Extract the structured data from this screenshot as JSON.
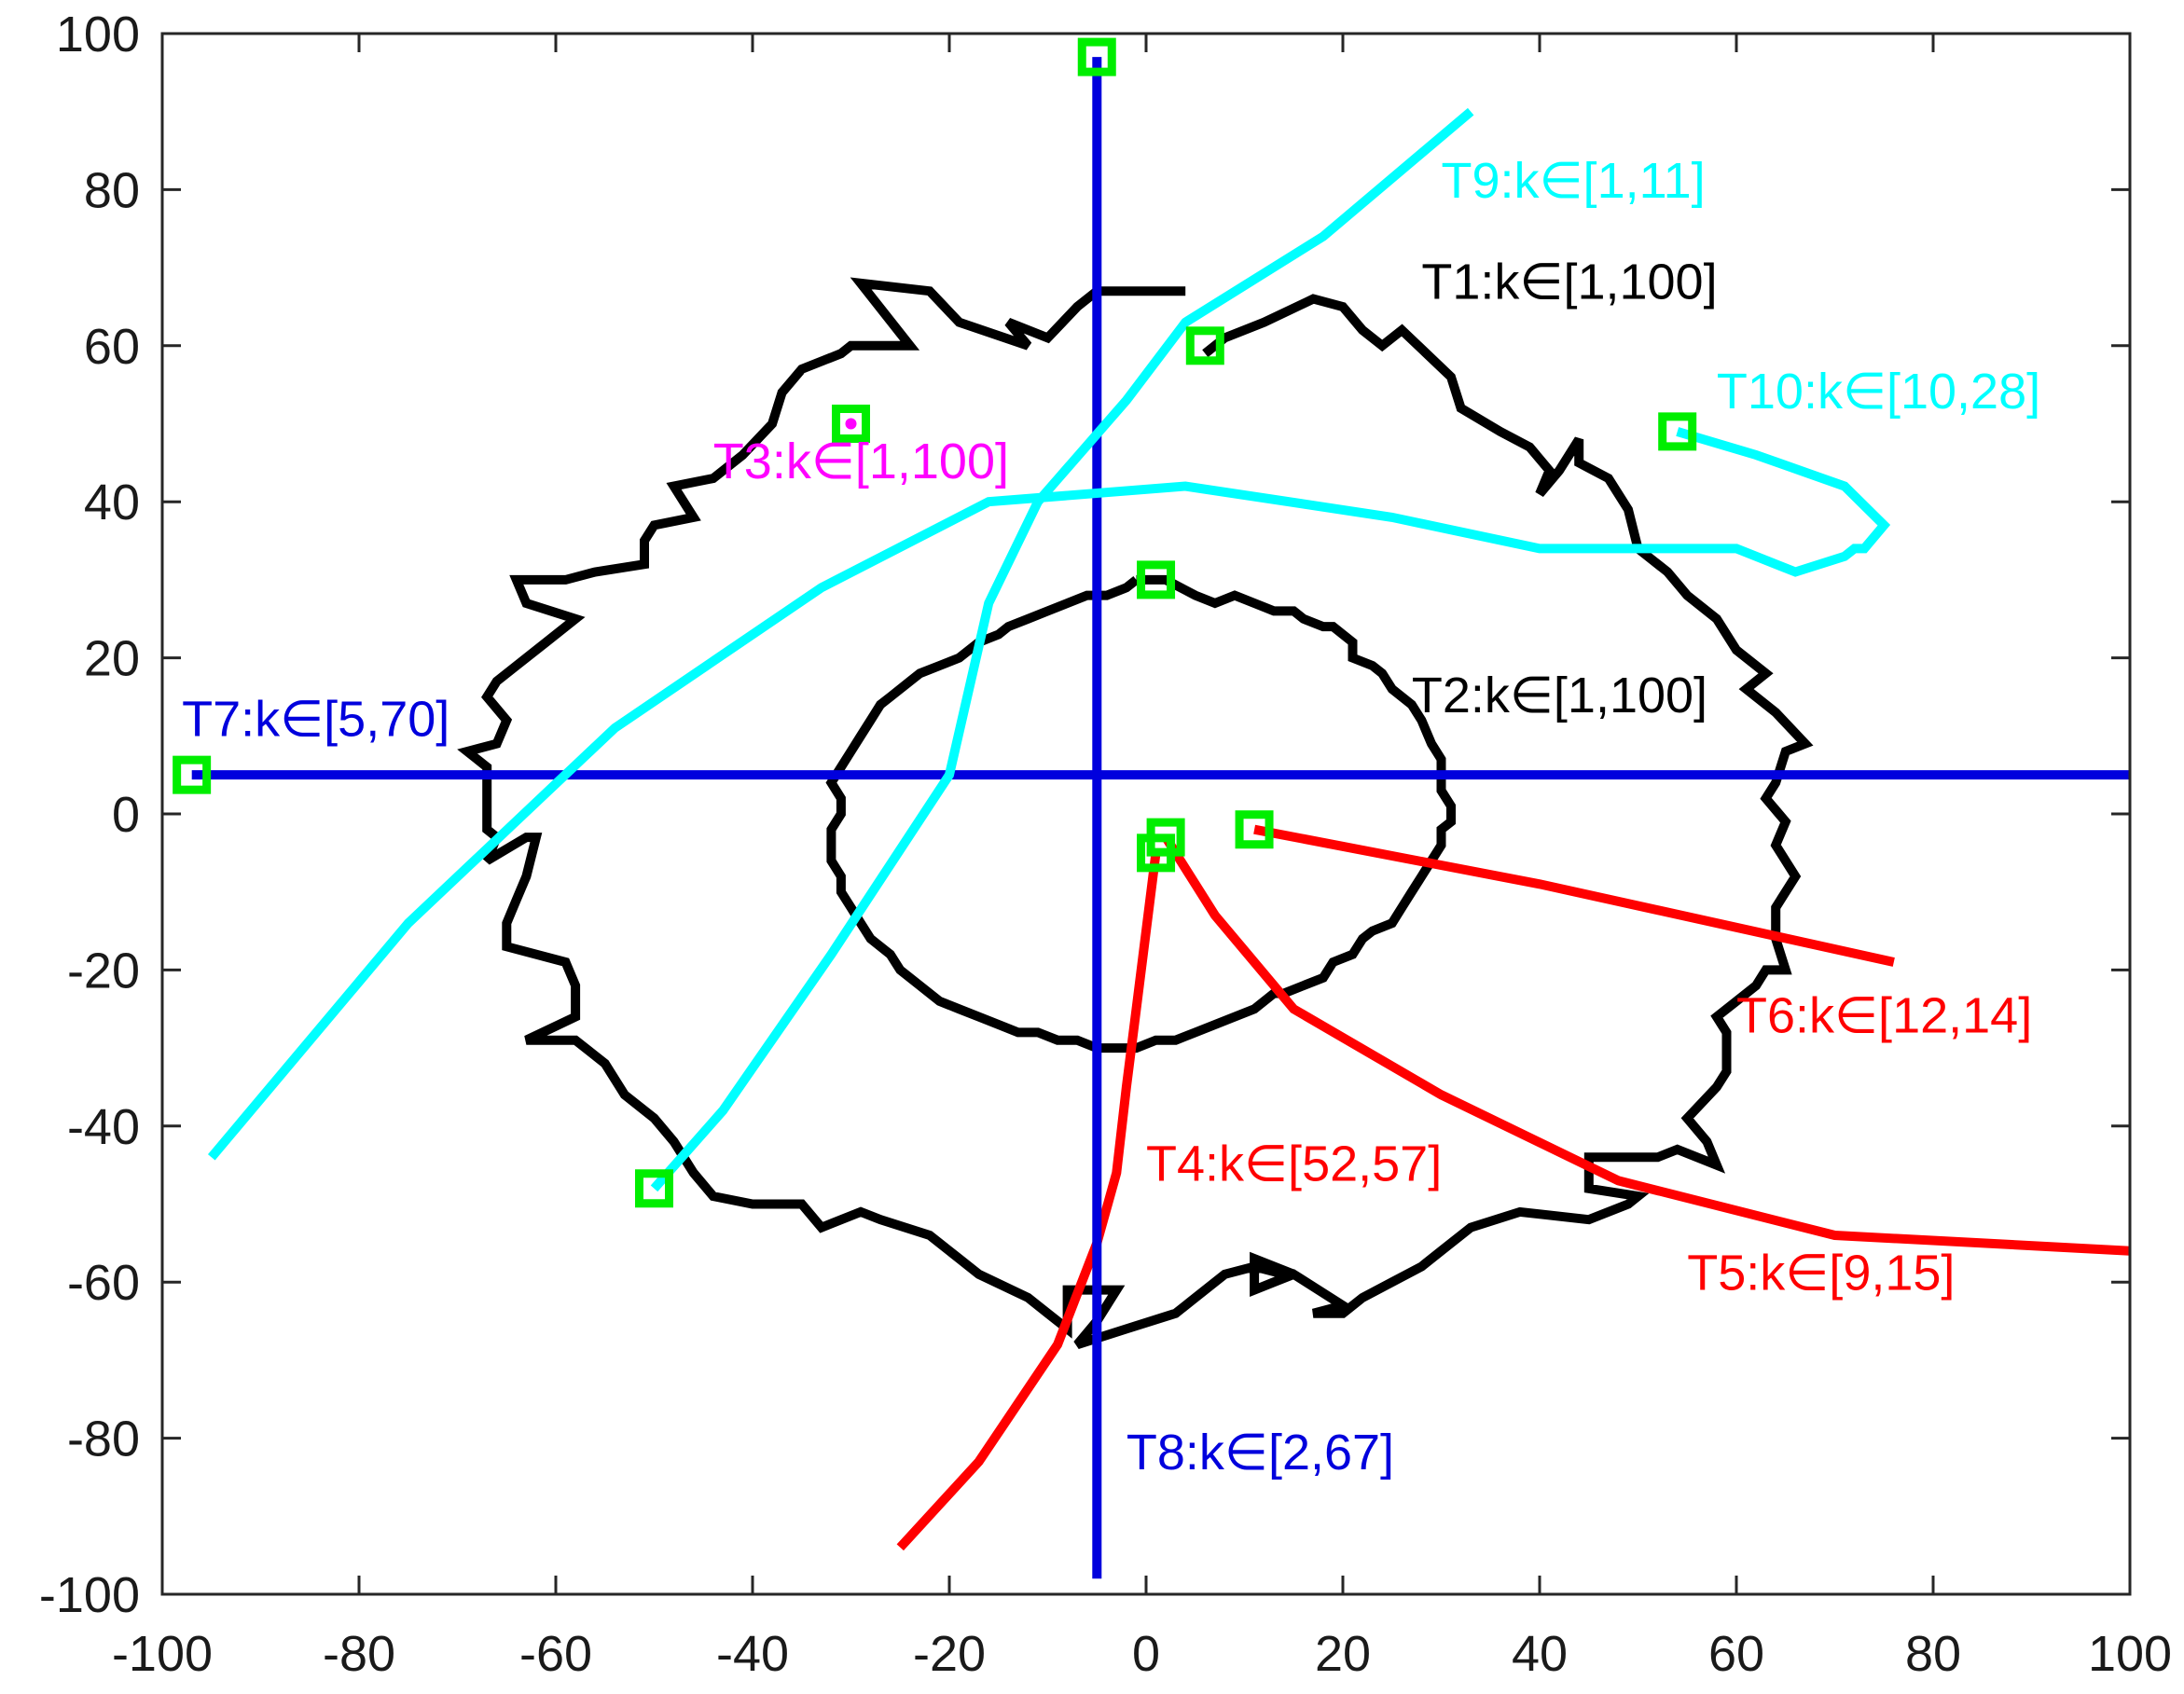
{
  "chart_data": {
    "type": "line",
    "title": "",
    "xlabel": "",
    "ylabel": "",
    "xlim": [
      -100,
      100
    ],
    "ylim": [
      -100,
      100
    ],
    "xticks": [
      -100,
      -80,
      -60,
      -40,
      -20,
      0,
      20,
      40,
      60,
      80,
      100
    ],
    "yticks": [
      -100,
      -80,
      -60,
      -40,
      -20,
      0,
      20,
      40,
      60,
      80,
      100
    ],
    "grid": false,
    "legend": "none",
    "series": [
      {
        "id": "T1",
        "label": "T1:k∈[1,100]",
        "color": "#000000",
        "points": [
          [
            4,
            67
          ],
          [
            -5,
            67
          ],
          [
            -7,
            65
          ],
          [
            -10,
            61
          ],
          [
            -14,
            63
          ],
          [
            -12,
            60
          ],
          [
            -19,
            63
          ],
          [
            -22,
            67
          ],
          [
            -29,
            68
          ],
          [
            -24,
            60
          ],
          [
            -30,
            60
          ],
          [
            -31,
            59
          ],
          [
            -35,
            57
          ],
          [
            -37,
            54
          ],
          [
            -38,
            50
          ],
          [
            -41,
            46
          ],
          [
            -44,
            43
          ],
          [
            -48,
            42
          ],
          [
            -46,
            38
          ],
          [
            -50,
            37
          ],
          [
            -51,
            35
          ],
          [
            -51,
            32
          ],
          [
            -56,
            31
          ],
          [
            -59,
            30
          ],
          [
            -64,
            30
          ],
          [
            -63,
            27
          ],
          [
            -58,
            25
          ],
          [
            -61,
            22
          ],
          [
            -64,
            19
          ],
          [
            -66,
            17
          ],
          [
            -67,
            15
          ],
          [
            -65,
            12
          ],
          [
            -66,
            9
          ],
          [
            -69,
            8
          ],
          [
            -67,
            6
          ],
          [
            -67,
            2
          ],
          [
            -67,
            -2
          ],
          [
            -66,
            -3
          ],
          [
            -67,
            -6
          ],
          [
            -63,
            -3
          ],
          [
            -62,
            -3
          ],
          [
            -63,
            -8
          ],
          [
            -64,
            -11
          ],
          [
            -65,
            -14
          ],
          [
            -65,
            -17
          ],
          [
            -59,
            -19
          ],
          [
            -58,
            -22
          ],
          [
            -58,
            -26
          ],
          [
            -63,
            -29
          ],
          [
            -58,
            -29
          ],
          [
            -55,
            -32
          ],
          [
            -53,
            -36
          ],
          [
            -50,
            -39
          ],
          [
            -48,
            -42
          ],
          [
            -46,
            -46
          ],
          [
            -44,
            -49
          ],
          [
            -40,
            -50
          ],
          [
            -35,
            -50
          ],
          [
            -33,
            -53
          ],
          [
            -29,
            -51
          ],
          [
            -27,
            -52
          ],
          [
            -22,
            -54
          ],
          [
            -19,
            -57
          ],
          [
            -17,
            -59
          ],
          [
            -12,
            -62
          ],
          [
            -10,
            -64
          ],
          [
            -8,
            -66
          ],
          [
            -8,
            -61
          ],
          [
            -3,
            -61
          ],
          [
            -5,
            -65
          ],
          [
            -7,
            -68
          ],
          [
            -2,
            -66
          ],
          [
            3,
            -64
          ],
          [
            8,
            -59
          ],
          [
            11,
            -58
          ],
          [
            14,
            -59
          ],
          [
            15,
            -59
          ],
          [
            11,
            -57
          ],
          [
            11,
            -61
          ],
          [
            13,
            -60
          ],
          [
            15,
            -59
          ],
          [
            20,
            -63
          ],
          [
            17,
            -64
          ],
          [
            20,
            -64
          ],
          [
            22,
            -62
          ],
          [
            25,
            -60
          ],
          [
            28,
            -58
          ],
          [
            30,
            -56
          ],
          [
            33,
            -53
          ],
          [
            38,
            -51
          ],
          [
            45,
            -52
          ],
          [
            49,
            -50
          ],
          [
            50,
            -49
          ],
          [
            45,
            -48
          ],
          [
            45,
            -44
          ],
          [
            52,
            -44
          ],
          [
            54,
            -43
          ],
          [
            58,
            -45
          ],
          [
            57,
            -42
          ],
          [
            55,
            -39
          ],
          [
            58,
            -35
          ],
          [
            59,
            -33
          ],
          [
            59,
            -28
          ],
          [
            58,
            -26
          ],
          [
            60,
            -24
          ],
          [
            62,
            -22
          ],
          [
            63,
            -20
          ],
          [
            65,
            -20
          ],
          [
            64,
            -16
          ],
          [
            64,
            -12
          ],
          [
            66,
            -8
          ],
          [
            64,
            -4
          ],
          [
            65,
            -1
          ],
          [
            63,
            2
          ],
          [
            64,
            4
          ],
          [
            65,
            8
          ],
          [
            67,
            9
          ],
          [
            64,
            13
          ],
          [
            61,
            16
          ],
          [
            63,
            18
          ],
          [
            60,
            21
          ],
          [
            58,
            25
          ],
          [
            55,
            28
          ],
          [
            53,
            31
          ],
          [
            50,
            34
          ],
          [
            49,
            39
          ],
          [
            47,
            43
          ],
          [
            44,
            45
          ],
          [
            44,
            48
          ],
          [
            42,
            44
          ],
          [
            40,
            41
          ],
          [
            41,
            44
          ],
          [
            39,
            47
          ],
          [
            36,
            49
          ],
          [
            32,
            52
          ],
          [
            31,
            56
          ],
          [
            26,
            62
          ],
          [
            24,
            60
          ],
          [
            22,
            62
          ],
          [
            20,
            65
          ],
          [
            17,
            66
          ],
          [
            12,
            63
          ],
          [
            8,
            61
          ],
          [
            6,
            59
          ]
        ]
      },
      {
        "id": "T2",
        "label": "T2:k∈[1,100]",
        "color": "#000000",
        "points": [
          [
            -1,
            30
          ],
          [
            1,
            30
          ],
          [
            2,
            30
          ],
          [
            5,
            28
          ],
          [
            7,
            27
          ],
          [
            9,
            28
          ],
          [
            11,
            27
          ],
          [
            13,
            26
          ],
          [
            15,
            26
          ],
          [
            16,
            25
          ],
          [
            18,
            24
          ],
          [
            19,
            24
          ],
          [
            21,
            22
          ],
          [
            21,
            20
          ],
          [
            23,
            19
          ],
          [
            24,
            18
          ],
          [
            25,
            16
          ],
          [
            27,
            14
          ],
          [
            28,
            12
          ],
          [
            29,
            9
          ],
          [
            30,
            7
          ],
          [
            30,
            5
          ],
          [
            30,
            3
          ],
          [
            31,
            1
          ],
          [
            31,
            -1
          ],
          [
            30,
            -2
          ],
          [
            30,
            -4
          ],
          [
            29,
            -6
          ],
          [
            28,
            -8
          ],
          [
            27,
            -10
          ],
          [
            26,
            -12
          ],
          [
            25,
            -14
          ],
          [
            23,
            -15
          ],
          [
            22,
            -16
          ],
          [
            21,
            -18
          ],
          [
            19,
            -19
          ],
          [
            18,
            -21
          ],
          [
            16,
            -22
          ],
          [
            14,
            -23
          ],
          [
            13,
            -23
          ],
          [
            11,
            -25
          ],
          [
            9,
            -26
          ],
          [
            7,
            -27
          ],
          [
            5,
            -28
          ],
          [
            3,
            -29
          ],
          [
            1,
            -29
          ],
          [
            -1,
            -30
          ],
          [
            -3,
            -30
          ],
          [
            -5,
            -30
          ],
          [
            -7,
            -29
          ],
          [
            -9,
            -29
          ],
          [
            -11,
            -28
          ],
          [
            -13,
            -28
          ],
          [
            -15,
            -27
          ],
          [
            -17,
            -26
          ],
          [
            -19,
            -25
          ],
          [
            -21,
            -24
          ],
          [
            -23,
            -22
          ],
          [
            -25,
            -20
          ],
          [
            -26,
            -18
          ],
          [
            -28,
            -16
          ],
          [
            -29,
            -14
          ],
          [
            -30,
            -12
          ],
          [
            -31,
            -10
          ],
          [
            -31,
            -8
          ],
          [
            -32,
            -6
          ],
          [
            -32,
            -4
          ],
          [
            -32,
            -2
          ],
          [
            -31,
            0
          ],
          [
            -31,
            2
          ],
          [
            -32,
            4
          ],
          [
            -31,
            6
          ],
          [
            -30,
            8
          ],
          [
            -29,
            10
          ],
          [
            -28,
            12
          ],
          [
            -27,
            14
          ],
          [
            -26,
            15
          ],
          [
            -24,
            17
          ],
          [
            -23,
            18
          ],
          [
            -21,
            19
          ],
          [
            -19,
            20
          ],
          [
            -17,
            22
          ],
          [
            -15,
            23
          ],
          [
            -14,
            24
          ],
          [
            -12,
            25
          ],
          [
            -10,
            26
          ],
          [
            -8,
            27
          ],
          [
            -6,
            28
          ],
          [
            -4,
            28
          ],
          [
            -2,
            29
          ],
          [
            -1,
            30
          ]
        ]
      },
      {
        "id": "T3",
        "label": "T3:k∈[1,100]",
        "color": "#ff00ff",
        "points": [
          [
            -30,
            50
          ]
        ]
      },
      {
        "id": "T4",
        "label": "T4:k∈[52,57]",
        "color": "#ff0000",
        "points": [
          [
            1,
            -5
          ],
          [
            0,
            -15
          ],
          [
            -1,
            -25
          ],
          [
            -2,
            -35
          ],
          [
            -3,
            -46
          ],
          [
            -5,
            -55
          ],
          [
            -9,
            -68
          ],
          [
            -17,
            -83
          ],
          [
            -25,
            -94
          ]
        ]
      },
      {
        "id": "T5",
        "label": "T5:k∈[9,15]",
        "color": "#ff0000",
        "points": [
          [
            2,
            -3
          ],
          [
            7,
            -13
          ],
          [
            15,
            -25
          ],
          [
            30,
            -36
          ],
          [
            48,
            -47
          ],
          [
            70,
            -54
          ],
          [
            100,
            -56
          ]
        ]
      },
      {
        "id": "T6",
        "label": "T6:k∈[12,14]",
        "color": "#ff0000",
        "points": [
          [
            11,
            -2
          ],
          [
            40,
            -9
          ],
          [
            76,
            -19
          ]
        ]
      },
      {
        "id": "T7",
        "label": "T7:k∈[5,70]",
        "color": "#0000dd",
        "points": [
          [
            -97,
            5
          ],
          [
            100,
            5
          ]
        ]
      },
      {
        "id": "T8",
        "label": "T8:k∈[2,67]",
        "color": "#0000dd",
        "points": [
          [
            -5,
            97
          ],
          [
            -5,
            -98
          ]
        ]
      },
      {
        "id": "T9",
        "label": "T9:k∈[1,11]",
        "color": "#00ffff",
        "points": [
          [
            -50,
            -48
          ],
          [
            -43,
            -38
          ],
          [
            -32,
            -18
          ],
          [
            -20,
            5
          ],
          [
            -16,
            27
          ],
          [
            -11,
            40
          ],
          [
            -2,
            53
          ],
          [
            4,
            63
          ],
          [
            18,
            74
          ],
          [
            33,
            90
          ]
        ]
      },
      {
        "id": "T10",
        "label": "T10:k∈[10,28]",
        "color": "#00ffff",
        "points": [
          [
            54,
            49
          ],
          [
            62,
            46
          ],
          [
            71,
            42
          ],
          [
            75,
            37
          ],
          [
            73,
            34
          ],
          [
            72,
            34
          ],
          [
            71,
            33
          ],
          [
            66,
            31
          ],
          [
            60,
            34
          ],
          [
            50,
            34
          ],
          [
            40,
            34
          ],
          [
            25,
            38
          ],
          [
            4,
            42
          ],
          [
            -16,
            40
          ],
          [
            -33,
            29
          ],
          [
            -54,
            11
          ],
          [
            -75,
            -14
          ],
          [
            -95,
            -44
          ]
        ]
      }
    ],
    "start_markers": {
      "color": "#00ee00",
      "points": [
        [
          -5,
          97
        ],
        [
          -97,
          5
        ],
        [
          -50,
          -48
        ],
        [
          -30,
          50
        ],
        [
          6,
          60
        ],
        [
          1,
          30
        ],
        [
          54,
          49
        ],
        [
          11,
          -2
        ],
        [
          2,
          -3
        ],
        [
          1,
          -5
        ]
      ]
    },
    "annotations": [
      {
        "text": "T9:k∈[1,11]",
        "x": 30,
        "y": 79,
        "color": "#00ffff"
      },
      {
        "text": "T1:k∈[1,100]",
        "x": 28,
        "y": 66,
        "color": "#000000"
      },
      {
        "text": "T10:k∈[10,28]",
        "x": 58,
        "y": 52,
        "color": "#00ffff"
      },
      {
        "text": "T3:k∈[1,100]",
        "x": -44,
        "y": 43,
        "color": "#ff00ff"
      },
      {
        "text": "T2:k∈[1,100]",
        "x": 27,
        "y": 13,
        "color": "#000000"
      },
      {
        "text": "T7:k∈[5,70]",
        "x": -98,
        "y": 10,
        "color": "#0000dd"
      },
      {
        "text": "T6:k∈[12,14]",
        "x": 60,
        "y": -28,
        "color": "#ff0000"
      },
      {
        "text": "T4:k∈[52,57]",
        "x": 0,
        "y": -47,
        "color": "#ff0000"
      },
      {
        "text": "T5:k∈[9,15]",
        "x": 55,
        "y": -61,
        "color": "#ff0000"
      },
      {
        "text": "T8:k∈[2,67]",
        "x": -2,
        "y": -84,
        "color": "#0000dd"
      }
    ]
  }
}
